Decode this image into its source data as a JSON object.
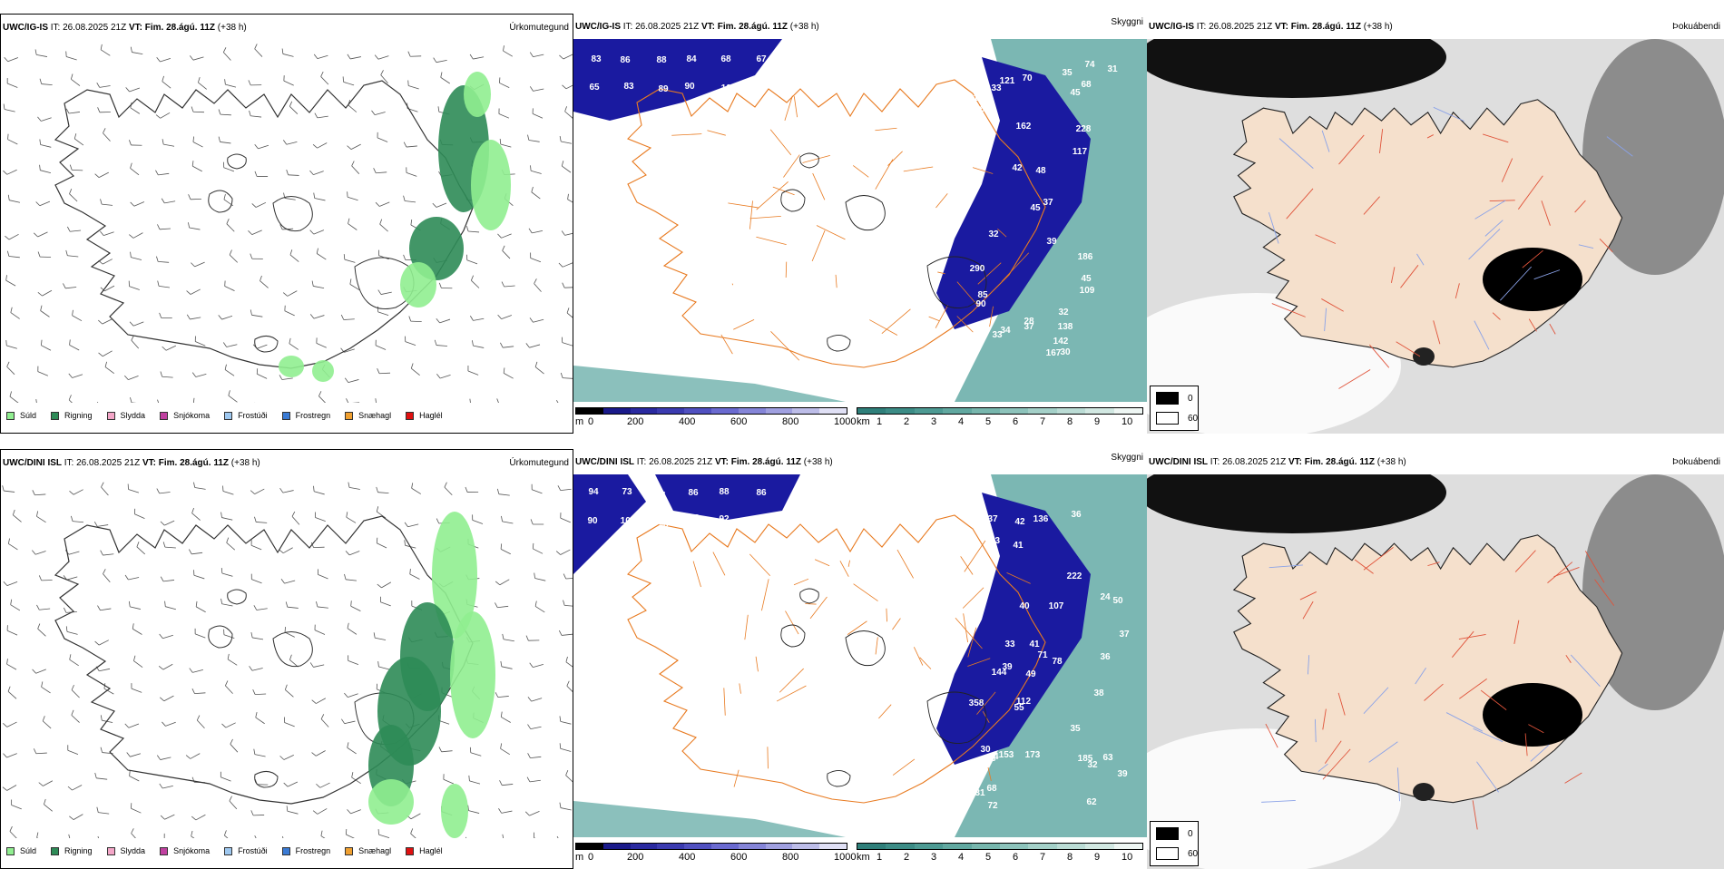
{
  "rows": [
    {
      "precip": {
        "model": "UWC/IG-IS",
        "it_label": "IT: 26.08.2025 21Z",
        "vt_label": "VT: Fim. 28.ágú. 11Z",
        "lead": "(+38 h)",
        "title": "Úrkomutegund"
      },
      "visibility": {
        "model": "UWC/IG-IS",
        "it_label": "IT: 26.08.2025 21Z",
        "vt_label": "VT: Fim. 28.ágú. 11Z",
        "lead": "(+38 h)",
        "title": "Skyggni"
      },
      "cloud": {
        "model": "UWC/IG-IS",
        "it_label": "IT: 26.08.2025 21Z",
        "vt_label": "VT: Fim. 28.ágú. 11Z",
        "lead": "(+38 h)",
        "title": "Þokuábendi"
      },
      "numbers": [
        "83",
        "86",
        "88",
        "84",
        "68",
        "67",
        "65",
        "83",
        "89",
        "90",
        "101",
        "97",
        "228",
        "138",
        "186",
        "68",
        "90",
        "109",
        "45",
        "35",
        "45",
        "85",
        "30",
        "32",
        "66",
        "28",
        "37",
        "117",
        "121",
        "122",
        "162",
        "167",
        "33",
        "42",
        "32",
        "33",
        "31",
        "74",
        "70",
        "39",
        "37",
        "60",
        "48",
        "45",
        "186",
        "290",
        "34",
        "142"
      ]
    },
    {
      "precip": {
        "model": "UWC/DINI ISL",
        "it_label": "IT: 26.08.2025 21Z",
        "vt_label": "VT: Fim. 28.ágú. 11Z",
        "lead": "(+38 h)",
        "title": "Úrkomutegund"
      },
      "visibility": {
        "model": "UWC/DINI ISL",
        "it_label": "IT: 26.08.2025 21Z",
        "vt_label": "VT: Fim. 28.ágú. 11Z",
        "lead": "(+38 h)",
        "title": "Skyggni"
      },
      "cloud": {
        "model": "UWC/DINI ISL",
        "it_label": "IT: 26.08.2025 21Z",
        "vt_label": "VT: Fim. 28.ágú. 11Z",
        "lead": "(+38 h)",
        "title": "Þokuábendi"
      },
      "numbers": [
        "94",
        "73",
        "91",
        "86",
        "88",
        "86",
        "90",
        "105",
        "98",
        "88",
        "92",
        "37",
        "71",
        "84",
        "41",
        "62",
        "55",
        "36",
        "39",
        "37",
        "31",
        "49",
        "50",
        "36",
        "40",
        "30",
        "136",
        "144",
        "63",
        "68",
        "39",
        "35",
        "33",
        "38",
        "32",
        "72",
        "41",
        "78",
        "56",
        "37",
        "42",
        "107",
        "153",
        "173",
        "185",
        "112",
        "113",
        "358",
        "222",
        "24"
      ]
    }
  ],
  "legend_precip": [
    {
      "label": "Súld",
      "color": "#90ee90"
    },
    {
      "label": "Rigning",
      "color": "#2e8b57"
    },
    {
      "label": "Slydda",
      "color": "#f4a6c8"
    },
    {
      "label": "Snjókoma",
      "color": "#c040a0"
    },
    {
      "label": "Frostúði",
      "color": "#9ec8f0"
    },
    {
      "label": "Frostregn",
      "color": "#3a7bd5"
    },
    {
      "label": "Snæhagl",
      "color": "#f0a030"
    },
    {
      "label": "Haglél",
      "color": "#e01010"
    }
  ],
  "legend_height": {
    "unit": "m",
    "ticks": [
      "0",
      "200",
      "400",
      "600",
      "800",
      "1000"
    ]
  },
  "legend_km": {
    "unit": "km",
    "ticks": [
      "1",
      "2",
      "3",
      "4",
      "5",
      "6",
      "7",
      "8",
      "9",
      "10"
    ]
  },
  "legend_cloud": {
    "values": [
      "0",
      "60"
    ]
  },
  "colors": {
    "precip_drizzle": "#90ee90",
    "precip_rain": "#2e8b57",
    "vis_low": "#1a1aa0",
    "vis_mid": "#5aa5a0",
    "land_peach": "#f5e0cc",
    "roads": "#e87a20"
  }
}
